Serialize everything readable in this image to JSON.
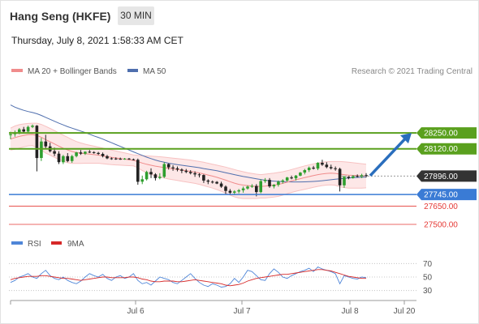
{
  "header": {
    "instrument": "Hang Seng (HKFE)",
    "timeframe": "30 MIN",
    "datetime": "Thursday, July 8, 2021 1:58:33 AM CET"
  },
  "legend": {
    "ma20": "MA 20 + Bollinger Bands",
    "ma50": "MA 50",
    "copyright": "Research © 2021 Trading Central",
    "rsi": "RSI",
    "rsi_ma": "9MA"
  },
  "colors": {
    "ma20": "#f08c8c",
    "ma50": "#4f6fae",
    "bollinger_fill": "#fde1e1",
    "bull_candle": "#2e9e2e",
    "bear_candle": "#222222",
    "resistance": "#5aa01e",
    "support_major": "#3a7bd5",
    "support_minor": "#e53935",
    "current": "#333333",
    "arrow": "#2a6ebd",
    "rsi_line": "#4f86d8",
    "rsi_ma_line": "#d62828"
  },
  "icons": {
    "trend_arrow": "up-right-arrow-icon"
  },
  "chart_data": {
    "type": "candlestick",
    "price_ylim": [
      27440,
      28690
    ],
    "levels": [
      {
        "name": "resistance-2",
        "value": 28250,
        "label": "28250.00",
        "style": "resistance"
      },
      {
        "name": "resistance-1",
        "value": 28120,
        "label": "28120.00",
        "style": "resistance"
      },
      {
        "name": "current",
        "value": 27896,
        "label": "27896.00",
        "style": "current"
      },
      {
        "name": "support-1",
        "value": 27745,
        "label": "27745.00",
        "style": "support_major"
      },
      {
        "name": "support-2",
        "value": 27650,
        "label": "27650.00",
        "style": "support_minor"
      },
      {
        "name": "support-3",
        "value": 27500,
        "label": "27500.00",
        "style": "support_minor"
      }
    ],
    "candles": [
      [
        28232,
        28260,
        28200,
        28240
      ],
      [
        28240,
        28270,
        28220,
        28256
      ],
      [
        28256,
        28290,
        28240,
        28280
      ],
      [
        28280,
        28300,
        28250,
        28262
      ],
      [
        28262,
        28310,
        28255,
        28300
      ],
      [
        28300,
        28320,
        28290,
        28310
      ],
      [
        28310,
        28315,
        27935,
        28045
      ],
      [
        28045,
        28210,
        28020,
        28180
      ],
      [
        28180,
        28235,
        28120,
        28140
      ],
      [
        28140,
        28170,
        28090,
        28100
      ],
      [
        28100,
        28130,
        28060,
        28080
      ],
      [
        28080,
        28100,
        27995,
        28010
      ],
      [
        28010,
        28070,
        27995,
        28060
      ],
      [
        28060,
        28085,
        28010,
        28020
      ],
      [
        28020,
        28070,
        28005,
        28060
      ],
      [
        28060,
        28095,
        28050,
        28090
      ],
      [
        28090,
        28110,
        28070,
        28080
      ],
      [
        28080,
        28100,
        28070,
        28096
      ],
      [
        28096,
        28110,
        28085,
        28092
      ],
      [
        28092,
        28100,
        28080,
        28086
      ],
      [
        28086,
        28095,
        28070,
        28078
      ],
      [
        28078,
        28090,
        28050,
        28060
      ],
      [
        28060,
        28070,
        28035,
        28042
      ],
      [
        28042,
        28050,
        28030,
        28040
      ],
      [
        28040,
        28050,
        28030,
        28038
      ],
      [
        28038,
        28048,
        28030,
        28036
      ],
      [
        28036,
        28045,
        28030,
        28040
      ],
      [
        28040,
        28045,
        28030,
        28034
      ],
      [
        28034,
        28040,
        28025,
        28030
      ],
      [
        28030,
        28040,
        27825,
        27850
      ],
      [
        27850,
        27900,
        27830,
        27870
      ],
      [
        27870,
        27940,
        27860,
        27930
      ],
      [
        27930,
        27960,
        27880,
        27910
      ],
      [
        27910,
        27920,
        27860,
        27880
      ],
      [
        27880,
        27920,
        27870,
        27890
      ],
      [
        27890,
        28010,
        27880,
        27995
      ],
      [
        27995,
        28000,
        27950,
        27968
      ],
      [
        27968,
        27985,
        27940,
        27960
      ],
      [
        27960,
        27975,
        27935,
        27950
      ],
      [
        27950,
        27960,
        27920,
        27940
      ],
      [
        27940,
        27955,
        27920,
        27930
      ],
      [
        27930,
        27945,
        27910,
        27920
      ],
      [
        27920,
        27935,
        27890,
        27910
      ],
      [
        27910,
        27920,
        27885,
        27905
      ],
      [
        27905,
        27910,
        27840,
        27860
      ],
      [
        27860,
        27870,
        27830,
        27850
      ],
      [
        27850,
        27860,
        27835,
        27848
      ],
      [
        27848,
        27855,
        27830,
        27835
      ],
      [
        27835,
        27850,
        27800,
        27810
      ],
      [
        27810,
        27820,
        27750,
        27775
      ],
      [
        27775,
        27790,
        27745,
        27760
      ],
      [
        27760,
        27780,
        27740,
        27770
      ],
      [
        27770,
        27790,
        27755,
        27780
      ],
      [
        27780,
        27810,
        27760,
        27795
      ],
      [
        27795,
        27820,
        27785,
        27810
      ],
      [
        27810,
        27830,
        27800,
        27815
      ],
      [
        27815,
        27830,
        27730,
        27765
      ],
      [
        27765,
        27870,
        27755,
        27855
      ],
      [
        27855,
        27880,
        27840,
        27865
      ],
      [
        27865,
        27880,
        27800,
        27812
      ],
      [
        27812,
        27830,
        27795,
        27825
      ],
      [
        27825,
        27860,
        27810,
        27850
      ],
      [
        27850,
        27870,
        27835,
        27860
      ],
      [
        27860,
        27890,
        27850,
        27885
      ],
      [
        27885,
        27900,
        27870,
        27878
      ],
      [
        27878,
        27905,
        27860,
        27900
      ],
      [
        27900,
        27930,
        27895,
        27925
      ],
      [
        27925,
        27955,
        27910,
        27945
      ],
      [
        27945,
        27975,
        27930,
        27965
      ],
      [
        27965,
        27980,
        27950,
        27958
      ],
      [
        27958,
        28010,
        27945,
        28005
      ],
      [
        28005,
        28030,
        27980,
        27990
      ],
      [
        27990,
        28010,
        27960,
        27970
      ],
      [
        27970,
        27990,
        27950,
        27960
      ],
      [
        27960,
        27975,
        27940,
        27955
      ],
      [
        27955,
        27965,
        27770,
        27820
      ],
      [
        27820,
        27900,
        27800,
        27890
      ],
      [
        27890,
        27900,
        27870,
        27880
      ],
      [
        27880,
        27905,
        27875,
        27898
      ],
      [
        27898,
        27910,
        27885,
        27890
      ],
      [
        27890,
        27915,
        27880,
        27905
      ],
      [
        27905,
        27920,
        27885,
        27896
      ]
    ],
    "ma20": [
      28200,
      28212,
      28222,
      28230,
      28236,
      28238,
      28230,
      28215,
      28195,
      28178,
      28160,
      28142,
      28125,
      28110,
      28098,
      28090,
      28084,
      28080,
      28076,
      28072,
      28068,
      28062,
      28056,
      28050,
      28045,
      28040,
      28035,
      28030,
      28025,
      28015,
      28003,
      27993,
      27985,
      27978,
      27972,
      27966,
      27960,
      27955,
      27950,
      27945,
      27940,
      27935,
      27929,
      27922,
      27914,
      27905,
      27896,
      27886,
      27875,
      27863,
      27850,
      27838,
      27828,
      27822,
      27818,
      27815,
      27812,
      27812,
      27814,
      27818,
      27822,
      27828,
      27836,
      27846,
      27856,
      27866,
      27875,
      27884,
      27892,
      27900,
      27908,
      27914,
      27918,
      27920,
      27918,
      27912,
      27908,
      27904,
      27902,
      27900,
      27898,
      27897
    ],
    "bollinger_upper": [
      28290,
      28308,
      28318,
      28324,
      28328,
      28330,
      28330,
      28320,
      28305,
      28288,
      28270,
      28250,
      28232,
      28214,
      28196,
      28180,
      28168,
      28158,
      28150,
      28142,
      28134,
      28126,
      28118,
      28110,
      28102,
      28094,
      28086,
      28078,
      28070,
      28066,
      28064,
      28062,
      28060,
      28058,
      28055,
      28052,
      28048,
      28044,
      28040,
      28036,
      28032,
      28028,
      28022,
      28016,
      28010,
      28002,
      27994,
      27986,
      27978,
      27970,
      27960,
      27950,
      27940,
      27932,
      27924,
      27918,
      27912,
      27908,
      27912,
      27916,
      27920,
      27926,
      27932,
      27940,
      27950,
      27960,
      27970,
      27980,
      27988,
      27996,
      28004,
      28010,
      28014,
      28016,
      28016,
      28016,
      28014,
      28010,
      28006,
      28002,
      27998,
      27994
    ],
    "bollinger_lower": [
      28110,
      28116,
      28126,
      28136,
      28144,
      28146,
      28130,
      28110,
      28085,
      28068,
      28050,
      28034,
      28018,
      28006,
      28000,
      28000,
      28000,
      28002,
      28002,
      28002,
      28002,
      27998,
      27994,
      27990,
      27988,
      27986,
      27984,
      27982,
      27980,
      27964,
      27942,
      27924,
      27910,
      27898,
      27889,
      27880,
      27872,
      27866,
      27860,
      27854,
      27848,
      27842,
      27836,
      27828,
      27818,
      27808,
      27798,
      27786,
      27772,
      27756,
      27740,
      27726,
      27716,
      27712,
      27712,
      27712,
      27712,
      27716,
      27716,
      27720,
      27724,
      27730,
      27740,
      27752,
      27762,
      27772,
      27780,
      27788,
      27796,
      27804,
      27812,
      27818,
      27822,
      27824,
      27820,
      27808,
      27802,
      27798,
      27798,
      27798,
      27798,
      27800
    ],
    "ma50": [
      28480,
      28462,
      28448,
      28436,
      28426,
      28418,
      28408,
      28394,
      28378,
      28362,
      28346,
      28330,
      28316,
      28302,
      28290,
      28278,
      28266,
      28254,
      28240,
      28226,
      28214,
      28200,
      28185,
      28170,
      28155,
      28140,
      28125,
      28110,
      28095,
      28080,
      28066,
      28052,
      28040,
      28028,
      28018,
      28010,
      28002,
      27996,
      27990,
      27985,
      27980,
      27975,
      27970,
      27965,
      27958,
      27952,
      27946,
      27940,
      27932,
      27924,
      27916,
      27908,
      27900,
      27893,
      27887,
      27880,
      27874,
      27868,
      27862,
      27858,
      27855,
      27852,
      27850,
      27849,
      27848,
      27848,
      27848,
      27849,
      27850,
      27852,
      27855,
      27858,
      27862,
      27866,
      27870,
      27874,
      27877,
      27880,
      27883,
      27885,
      27887,
      27888
    ],
    "projection": {
      "from": 27900,
      "to": 28250
    },
    "x_ticks": [
      "Jul 6",
      "Jul 7",
      "Jul 8",
      "Jul 20"
    ],
    "rsi": {
      "ylim": [
        20,
        80
      ],
      "ticks": [
        "70",
        "50",
        "30"
      ],
      "values": [
        42,
        45,
        50,
        52,
        55,
        50,
        48,
        55,
        60,
        52,
        48,
        46,
        50,
        45,
        42,
        40,
        44,
        50,
        55,
        52,
        50,
        54,
        48,
        45,
        50,
        52,
        48,
        50,
        55,
        45,
        40,
        42,
        38,
        44,
        50,
        48,
        46,
        42,
        40,
        45,
        50,
        55,
        48,
        42,
        38,
        36,
        40,
        38,
        35,
        36,
        40,
        48,
        42,
        50,
        60,
        58,
        52,
        46,
        45,
        55,
        62,
        57,
        50,
        48,
        52,
        55,
        58,
        60,
        63,
        58,
        65,
        62,
        60,
        58,
        55,
        40,
        52,
        50,
        48,
        47,
        50,
        49
      ],
      "ma9": [
        46,
        48,
        49,
        50,
        51,
        51,
        51,
        52,
        52,
        51,
        50,
        49,
        48,
        48,
        47,
        46,
        45,
        46,
        47,
        48,
        49,
        50,
        50,
        49,
        49,
        49,
        49,
        50,
        50,
        49,
        47,
        46,
        44,
        43,
        43,
        44,
        44,
        44,
        43,
        43,
        44,
        45,
        46,
        45,
        44,
        43,
        42,
        41,
        40,
        38,
        37,
        38,
        39,
        41,
        44,
        46,
        48,
        49,
        50,
        51,
        52,
        53,
        54,
        54,
        55,
        56,
        57,
        58,
        59,
        60,
        61,
        61,
        60,
        59,
        57,
        55,
        53,
        51,
        50,
        49,
        48,
        48
      ]
    }
  }
}
